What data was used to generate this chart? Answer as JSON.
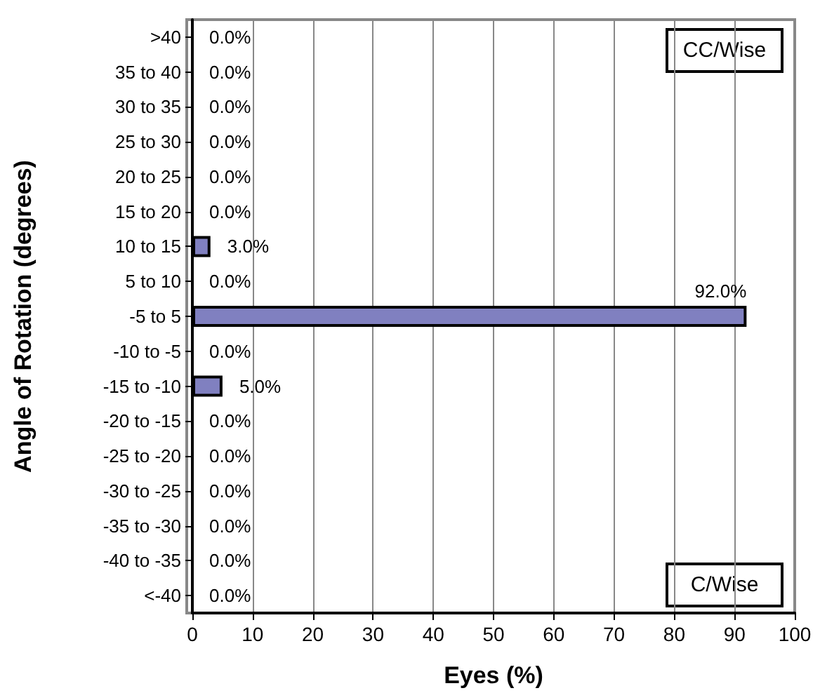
{
  "chart_data": {
    "type": "bar",
    "orientation": "horizontal",
    "xlabel": "Eyes (%)",
    "ylabel": "Angle of Rotation (degrees)",
    "categories": [
      ">40",
      "35 to 40",
      "30 to 35",
      "25 to 30",
      "20 to 25",
      "15 to 20",
      "10 to 15",
      "5 to 10",
      "-5 to 5",
      "-10 to -5",
      "-15 to -10",
      "-20 to -15",
      "-25 to -20",
      "-30 to -25",
      "-35 to -30",
      "-40 to -35",
      "<-40"
    ],
    "values": [
      0,
      0,
      0,
      0,
      0,
      0,
      3,
      0,
      92,
      0,
      5,
      0,
      0,
      0,
      0,
      0,
      0
    ],
    "value_labels": [
      "0.0%",
      "0.0%",
      "0.0%",
      "0.0%",
      "0.0%",
      "0.0%",
      "3.0%",
      "0.0%",
      "92.0%",
      "0.0%",
      "5.0%",
      "0.0%",
      "0.0%",
      "0.0%",
      "0.0%",
      "0.0%",
      "0.0%"
    ],
    "color": "#8080c0",
    "xlim": [
      0,
      100
    ],
    "xticks": [
      0,
      10,
      20,
      30,
      40,
      50,
      60,
      70,
      80,
      90,
      100
    ],
    "grid": "x",
    "annotations": [
      "CC/Wise",
      "C/Wise"
    ]
  }
}
